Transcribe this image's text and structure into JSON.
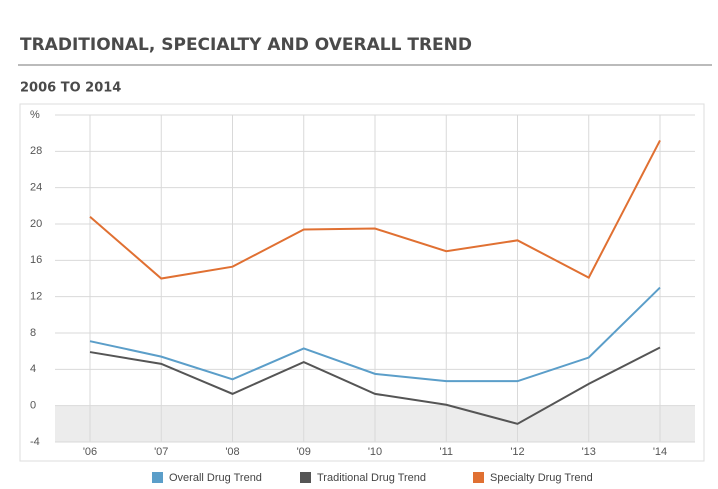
{
  "chart_data": {
    "type": "line",
    "title": "TRADITIONAL, SPECIALTY AND OVERALL TREND",
    "subtitle": "2006 TO 2014",
    "categories": [
      "'06",
      "'07",
      "'08",
      "'09",
      "'10",
      "'11",
      "'12",
      "'13",
      "'14"
    ],
    "series": [
      {
        "name": "Overall Drug Trend",
        "color": "#5b9ec9",
        "values": [
          7.1,
          5.4,
          2.9,
          6.3,
          3.5,
          2.7,
          2.7,
          5.3,
          13.0
        ]
      },
      {
        "name": "Traditional Drug Trend",
        "color": "#555555",
        "values": [
          5.9,
          4.6,
          1.3,
          4.8,
          1.3,
          0.1,
          -2.0,
          2.4,
          6.4
        ]
      },
      {
        "name": "Specialty Drug Trend",
        "color": "#e07032",
        "values": [
          20.8,
          14.0,
          15.3,
          19.4,
          19.5,
          17.0,
          18.2,
          14.1,
          29.2
        ]
      }
    ],
    "ylim": [
      -4,
      32
    ],
    "yticks": [
      -4,
      0,
      4,
      8,
      12,
      16,
      20,
      24,
      28,
      {
        "value": 32,
        "label": "%"
      }
    ],
    "grid": true
  }
}
